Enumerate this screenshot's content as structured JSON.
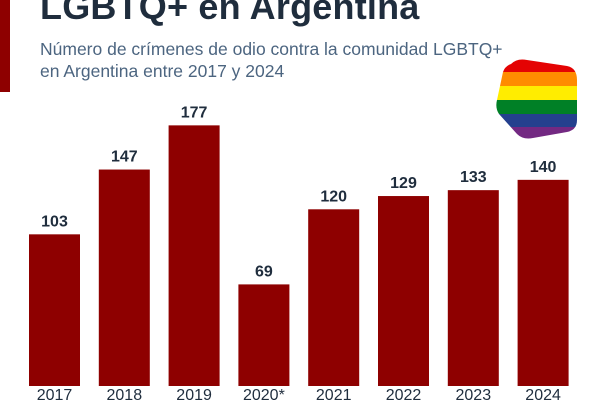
{
  "header": {
    "title": "LGBTQ+ en Argentina",
    "subtitle": "Número de crímenes de odio contra la comunidad LGBTQ+ en Argentina entre 2017 y 2024"
  },
  "colors": {
    "bar": "#8e0000",
    "text": "#1f2d3d",
    "subtitle": "#4c6580"
  },
  "icons": {
    "flag": "rainbow-pride-flag-icon"
  },
  "chart_data": {
    "type": "bar",
    "categories": [
      "2017",
      "2018",
      "2019",
      "2020*",
      "2021",
      "2022",
      "2023",
      "2024"
    ],
    "values": [
      103,
      147,
      177,
      69,
      120,
      129,
      133,
      140
    ],
    "title": "LGBTQ+ en Argentina",
    "subtitle": "Número de crímenes de odio contra la comunidad LGBTQ+ en Argentina entre 2017 y 2024",
    "ylim": [
      0,
      182
    ],
    "grid": false,
    "legend": "none",
    "data_labels": true
  }
}
